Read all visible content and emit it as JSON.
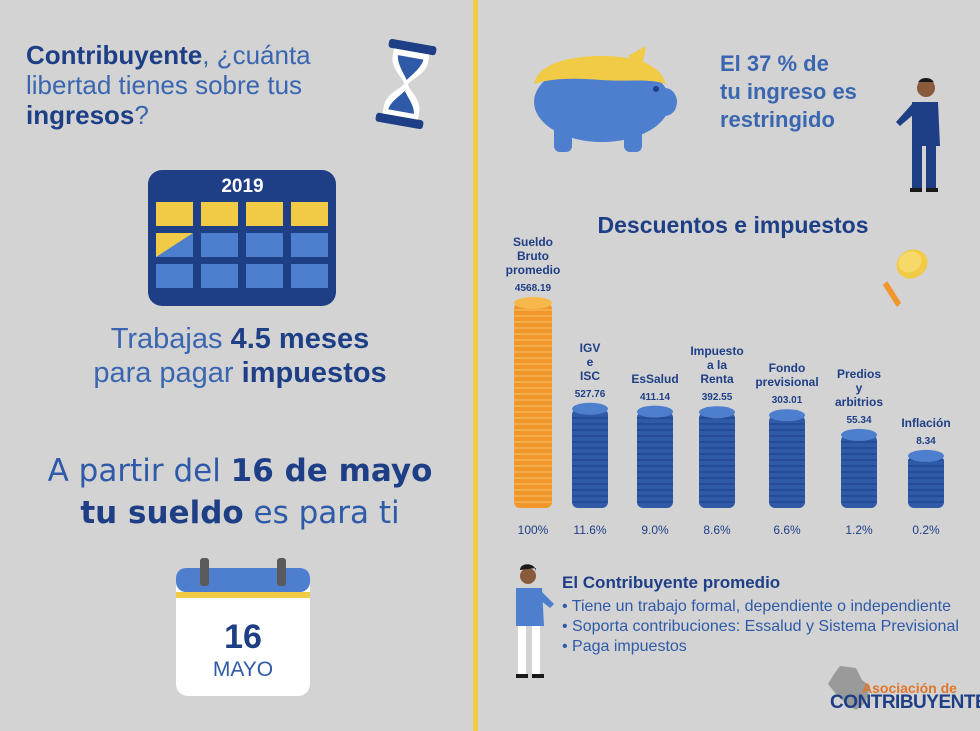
{
  "left": {
    "headline": {
      "bold1": "Contribuyente",
      "text1": ", ¿cuánta libertad tienes sobre tus ",
      "bold2": "ingresos",
      "text2": "?"
    },
    "calendar_year": "2019",
    "work": {
      "text1": "Trabajas ",
      "bold1": "4.5 meses",
      "text2": "para pagar ",
      "bold2": "impuestos"
    },
    "from": {
      "text1": "A partir del ",
      "bold1": "16 de mayo",
      "bold2": "tu sueldo",
      "text2": " es para ti"
    },
    "calendar_day": "16",
    "calendar_month": "MAYO"
  },
  "right": {
    "restricted": [
      "El 37 % de",
      "tu ingreso es",
      "restringido"
    ],
    "profile": {
      "title": "El Contribuyente promedio",
      "items": [
        "Tiene un trabajo formal, dependiente o independiente",
        "Soporta contribuciones: Essalud y Sistema Previsional",
        "Paga impuestos"
      ]
    },
    "logo": {
      "top": "Asociación de",
      "bottom": "CONTRIBUYENTES"
    }
  },
  "colors": {
    "background": "#d3d3d3",
    "navy": "#1e3f86",
    "blue": "#3a66b0",
    "yellow": "#f1cb45",
    "orange": "#f0962a"
  },
  "chart_data": {
    "type": "bar",
    "title": "Descuentos e impuestos",
    "categories": [
      "Sueldo Bruto promedio",
      "IGV e ISC",
      "EsSalud",
      "Impuesto a la Renta",
      "Fondo previsional",
      "Predios y arbitrios",
      "Inflación"
    ],
    "category_lines": [
      [
        "Sueldo",
        "Bruto",
        "promedio"
      ],
      [
        "IGV",
        "e",
        "ISC"
      ],
      [
        "EsSalud"
      ],
      [
        "Impuesto",
        "a la",
        "Renta"
      ],
      [
        "Fondo",
        "previsional"
      ],
      [
        "Predios",
        "y",
        "arbitrios"
      ],
      [
        "Inflación"
      ]
    ],
    "values": [
      4568.19,
      527.76,
      411.14,
      392.55,
      303.01,
      55.34,
      8.34
    ],
    "value_labels": [
      "4568.19",
      "527.76",
      "411.14",
      "392.55",
      "303.01",
      "55.34",
      "8.34"
    ],
    "percent_labels": [
      "100%",
      "11.6%",
      "9.0%",
      "8.6%",
      "6.6%",
      "1.2%",
      "0.2%"
    ],
    "colors": [
      "#f0962a",
      "#2f5aa8",
      "#2f5aa8",
      "#2f5aa8",
      "#2f5aa8",
      "#2f5aa8",
      "#2f5aa8"
    ]
  }
}
